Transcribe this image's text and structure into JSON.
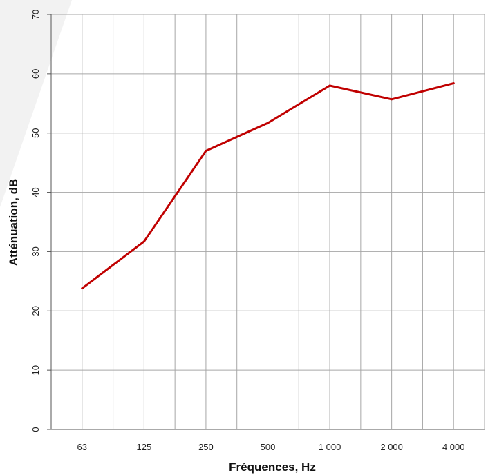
{
  "chart_data": {
    "type": "line",
    "categories": [
      "63",
      "125",
      "250",
      "500",
      "1 000",
      "2 000",
      "4 000"
    ],
    "series": [
      {
        "values": [
          23.8,
          31.7,
          47.0,
          51.7,
          58.0,
          55.7,
          58.4
        ]
      }
    ],
    "xlabel": "Fréquences, Hz",
    "ylabel": "Atténuation, dB",
    "ylim": [
      0,
      70
    ],
    "yticks": [
      0,
      10,
      20,
      30,
      40,
      50,
      60,
      70
    ],
    "grid": true,
    "line_color": "#c00000",
    "grid_color": "#a6a6a6"
  }
}
